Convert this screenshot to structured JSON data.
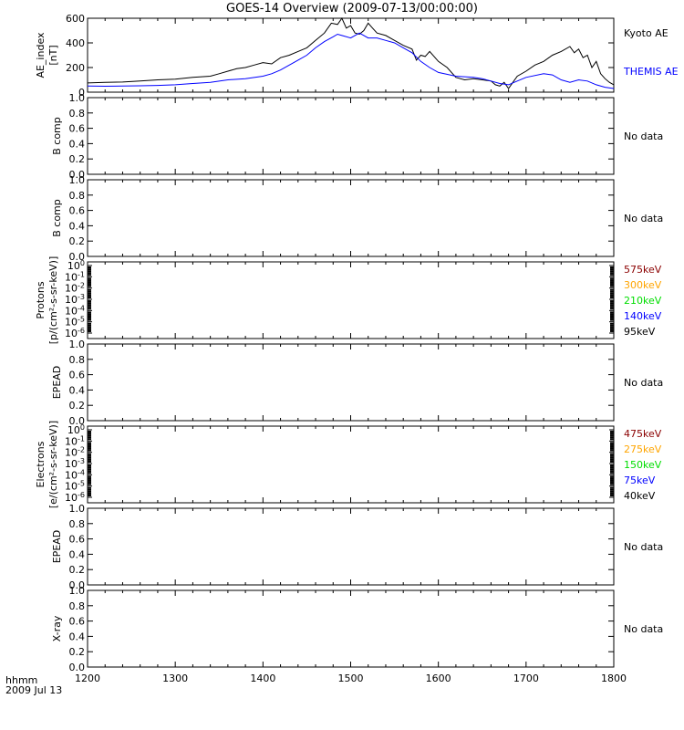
{
  "title": "GOES-14 Overview (2009-07-13/00:00:00)",
  "time_axis": {
    "corner_label_line1": "hhmm",
    "corner_label_line2": "2009 Jul 13",
    "ticks": [
      "1200",
      "1300",
      "1400",
      "1500",
      "1600",
      "1700",
      "1800"
    ]
  },
  "chart_data": [
    {
      "type": "line",
      "panel": "ae",
      "ylabel_line1": "AE_index",
      "ylabel_line2": "[nT]",
      "ylim": [
        0,
        600
      ],
      "yticks": [
        "0",
        "200",
        "400",
        "600"
      ],
      "xlim": [
        1200,
        1800
      ],
      "series": [
        {
          "name": "Kyoto AE",
          "color": "#000000",
          "points": [
            [
              1200,
              75
            ],
            [
              1220,
              80
            ],
            [
              1240,
              82
            ],
            [
              1260,
              90
            ],
            [
              1280,
              100
            ],
            [
              1300,
              105
            ],
            [
              1320,
              120
            ],
            [
              1340,
              130
            ],
            [
              1350,
              150
            ],
            [
              1360,
              170
            ],
            [
              1370,
              190
            ],
            [
              1380,
              200
            ],
            [
              1390,
              220
            ],
            [
              1400,
              240
            ],
            [
              1410,
              230
            ],
            [
              1420,
              280
            ],
            [
              1430,
              300
            ],
            [
              1440,
              330
            ],
            [
              1450,
              360
            ],
            [
              1460,
              420
            ],
            [
              1470,
              480
            ],
            [
              1478,
              560
            ],
            [
              1485,
              550
            ],
            [
              1490,
              600
            ],
            [
              1495,
              520
            ],
            [
              1500,
              540
            ],
            [
              1505,
              480
            ],
            [
              1510,
              470
            ],
            [
              1515,
              500
            ],
            [
              1520,
              560
            ],
            [
              1525,
              520
            ],
            [
              1530,
              480
            ],
            [
              1540,
              460
            ],
            [
              1550,
              420
            ],
            [
              1560,
              380
            ],
            [
              1570,
              350
            ],
            [
              1575,
              260
            ],
            [
              1580,
              300
            ],
            [
              1585,
              290
            ],
            [
              1590,
              330
            ],
            [
              1600,
              250
            ],
            [
              1610,
              200
            ],
            [
              1620,
              120
            ],
            [
              1630,
              100
            ],
            [
              1640,
              110
            ],
            [
              1650,
              100
            ],
            [
              1660,
              90
            ],
            [
              1665,
              60
            ],
            [
              1670,
              50
            ],
            [
              1675,
              80
            ],
            [
              1680,
              30
            ],
            [
              1685,
              80
            ],
            [
              1690,
              130
            ],
            [
              1700,
              170
            ],
            [
              1710,
              220
            ],
            [
              1720,
              250
            ],
            [
              1730,
              300
            ],
            [
              1740,
              330
            ],
            [
              1750,
              370
            ],
            [
              1755,
              320
            ],
            [
              1760,
              350
            ],
            [
              1765,
              280
            ],
            [
              1770,
              300
            ],
            [
              1775,
              200
            ],
            [
              1780,
              250
            ],
            [
              1785,
              150
            ],
            [
              1790,
              110
            ],
            [
              1795,
              80
            ],
            [
              1800,
              60
            ]
          ]
        },
        {
          "name": "THEMIS AE",
          "color": "#0000ff",
          "points": [
            [
              1200,
              50
            ],
            [
              1220,
              48
            ],
            [
              1240,
              50
            ],
            [
              1260,
              52
            ],
            [
              1280,
              55
            ],
            [
              1300,
              60
            ],
            [
              1320,
              70
            ],
            [
              1340,
              80
            ],
            [
              1360,
              100
            ],
            [
              1380,
              110
            ],
            [
              1400,
              130
            ],
            [
              1410,
              150
            ],
            [
              1420,
              180
            ],
            [
              1430,
              220
            ],
            [
              1440,
              260
            ],
            [
              1450,
              300
            ],
            [
              1460,
              360
            ],
            [
              1470,
              410
            ],
            [
              1480,
              450
            ],
            [
              1485,
              470
            ],
            [
              1490,
              460
            ],
            [
              1500,
              440
            ],
            [
              1510,
              480
            ],
            [
              1520,
              440
            ],
            [
              1530,
              440
            ],
            [
              1540,
              420
            ],
            [
              1550,
              400
            ],
            [
              1560,
              360
            ],
            [
              1570,
              320
            ],
            [
              1580,
              250
            ],
            [
              1590,
              200
            ],
            [
              1600,
              160
            ],
            [
              1620,
              130
            ],
            [
              1640,
              120
            ],
            [
              1650,
              110
            ],
            [
              1660,
              90
            ],
            [
              1670,
              70
            ],
            [
              1680,
              60
            ],
            [
              1690,
              90
            ],
            [
              1700,
              120
            ],
            [
              1720,
              150
            ],
            [
              1730,
              140
            ],
            [
              1740,
              100
            ],
            [
              1750,
              80
            ],
            [
              1760,
              100
            ],
            [
              1770,
              90
            ],
            [
              1780,
              60
            ],
            [
              1790,
              40
            ],
            [
              1800,
              30
            ]
          ]
        }
      ]
    },
    {
      "type": "line",
      "panel": "b1",
      "ylabel_line1": "B comp",
      "ylabel_line2": "",
      "ylim": [
        0,
        1
      ],
      "yticks": [
        "0.0",
        "0.2",
        "0.4",
        "0.6",
        "0.8",
        "1.0"
      ],
      "status": "No data"
    },
    {
      "type": "line",
      "panel": "b2",
      "ylabel_line1": "B comp",
      "ylabel_line2": "",
      "ylim": [
        0,
        1
      ],
      "yticks": [
        "0.0",
        "0.2",
        "0.4",
        "0.6",
        "0.8",
        "1.0"
      ],
      "status": "No data"
    },
    {
      "type": "line",
      "panel": "protons",
      "ylabel_line1": "Protons",
      "ylabel_line2": "[p/(cm²-s-sr-keV)]",
      "log_scale": true,
      "yticks_exp": [
        "0",
        "-1",
        "-2",
        "-3",
        "-4",
        "-5",
        "-6"
      ],
      "legend": [
        {
          "label": "575keV",
          "color": "#8b0000"
        },
        {
          "label": "300keV",
          "color": "#ffa500"
        },
        {
          "label": "210keV",
          "color": "#00dd00"
        },
        {
          "label": "140keV",
          "color": "#0000ff"
        },
        {
          "label": "95keV",
          "color": "#000000"
        }
      ]
    },
    {
      "type": "line",
      "panel": "epead1",
      "ylabel_line1": "EPEAD",
      "ylabel_line2": "",
      "ylim": [
        0,
        1
      ],
      "yticks": [
        "0.0",
        "0.2",
        "0.4",
        "0.6",
        "0.8",
        "1.0"
      ],
      "status": "No data"
    },
    {
      "type": "line",
      "panel": "electrons",
      "ylabel_line1": "Electrons",
      "ylabel_line2": "[e/(cm²-s-sr-keV)]",
      "log_scale": true,
      "yticks_exp": [
        "0",
        "-1",
        "-2",
        "-3",
        "-4",
        "-5",
        "-6"
      ],
      "legend": [
        {
          "label": "475keV",
          "color": "#8b0000"
        },
        {
          "label": "275keV",
          "color": "#ffa500"
        },
        {
          "label": "150keV",
          "color": "#00dd00"
        },
        {
          "label": "75keV",
          "color": "#0000ff"
        },
        {
          "label": "40keV",
          "color": "#000000"
        }
      ]
    },
    {
      "type": "line",
      "panel": "epead2",
      "ylabel_line1": "EPEAD",
      "ylabel_line2": "",
      "ylim": [
        0,
        1
      ],
      "yticks": [
        "0.0",
        "0.2",
        "0.4",
        "0.6",
        "0.8",
        "1.0"
      ],
      "status": "No data"
    },
    {
      "type": "line",
      "panel": "xray",
      "ylabel_line1": "X-ray",
      "ylabel_line2": "",
      "ylim": [
        0,
        1
      ],
      "yticks": [
        "0.0",
        "0.2",
        "0.4",
        "0.6",
        "0.8",
        "1.0"
      ],
      "status": "No data"
    }
  ]
}
